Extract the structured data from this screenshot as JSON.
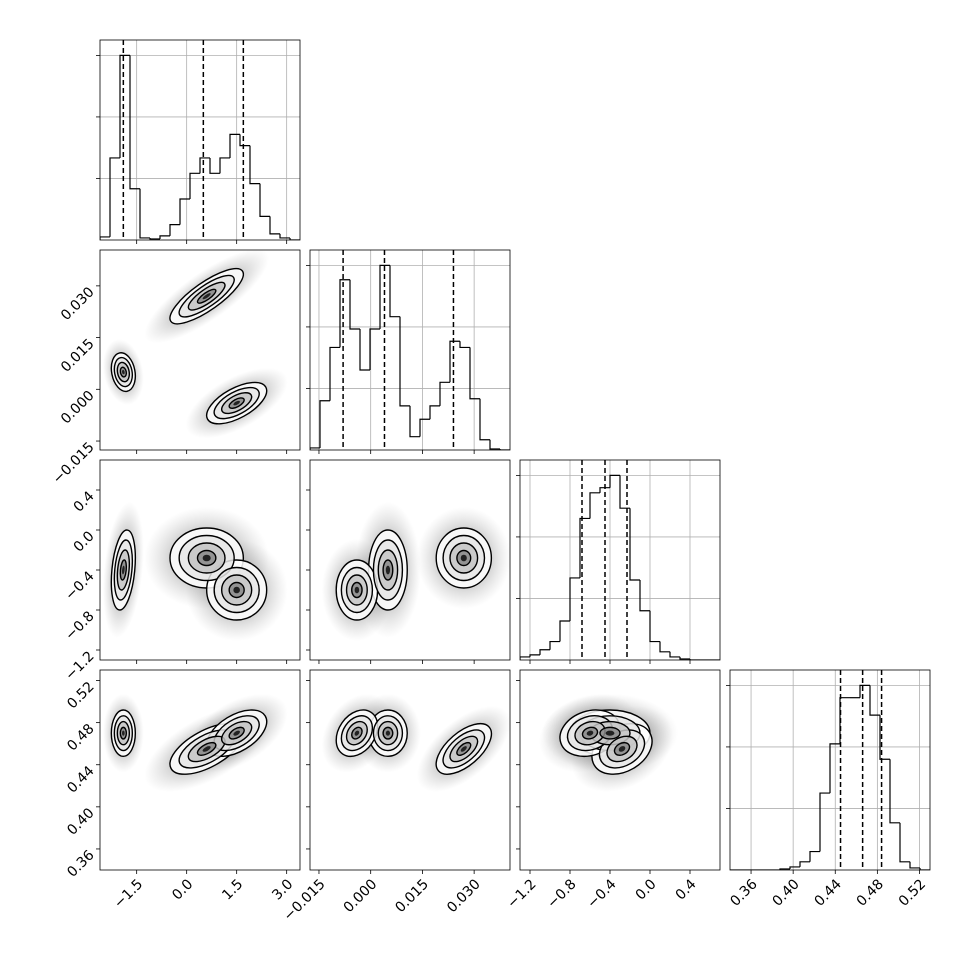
{
  "chart_data": {
    "type": "corner",
    "parameters": [
      {
        "lim": [
          -2.6,
          3.4
        ],
        "ticks": [
          {
            "value": -1.5,
            "label": "−1.5"
          },
          {
            "value": 0,
            "label": "0.0"
          },
          1.5,
          {
            "value": 3,
            "label": "3.0"
          }
        ],
        "bins": [
          -2.6,
          -2.3,
          -2.0,
          -1.7,
          -1.4,
          -1.1,
          -0.8,
          -0.5,
          -0.2,
          0.1,
          0.4,
          0.7,
          1.0,
          1.3,
          1.6,
          1.9,
          2.2,
          2.5,
          2.8,
          3.1,
          3.4
        ],
        "counts": [
          30,
          800,
          1800,
          500,
          20,
          10,
          40,
          150,
          400,
          650,
          800,
          650,
          800,
          1030,
          920,
          550,
          230,
          60,
          20,
          0
        ],
        "quantiles": [
          -1.9,
          0.5,
          1.7
        ]
      },
      {
        "lim": [
          -0.0176,
          0.0404
        ],
        "ticks": [
          {
            "value": -0.015,
            "label": "−0.015"
          },
          {
            "value": 0,
            "label": "0.000"
          },
          0.015,
          {
            "value": 0.03,
            "label": "0.030"
          }
        ],
        "bins": [
          -0.0176,
          -0.0147,
          -0.0118,
          -0.0089,
          -0.006,
          -0.0031,
          -0.0002,
          0.0027,
          0.0056,
          0.0085,
          0.0114,
          0.0143,
          0.0172,
          0.0201,
          0.023,
          0.0259,
          0.0288,
          0.0317,
          0.0346,
          0.0375,
          0.0404
        ],
        "counts": [
          20,
          480,
          1000,
          1660,
          1180,
          780,
          1180,
          1800,
          1300,
          430,
          130,
          300,
          430,
          660,
          1060,
          1000,
          500,
          100,
          10,
          0
        ],
        "quantiles": [
          -0.008,
          0.004,
          0.024
        ]
      },
      {
        "lim": [
          -1.3,
          0.7
        ],
        "ticks": [
          {
            "value": -1.2,
            "label": "−1.2"
          },
          {
            "value": -0.8,
            "label": "−0.8"
          },
          {
            "value": -0.4,
            "label": "−0.4"
          },
          {
            "value": 0,
            "label": "0.0"
          },
          0.4
        ],
        "bins": [
          -1.3,
          -1.2,
          -1.1,
          -1.0,
          -0.9,
          -0.8,
          -0.7,
          -0.6,
          -0.5,
          -0.4,
          -0.3,
          -0.2,
          -0.1,
          0.0,
          0.1,
          0.2,
          0.3,
          0.4,
          0.5,
          0.6,
          0.7
        ],
        "counts": [
          30,
          50,
          100,
          180,
          380,
          800,
          1380,
          1630,
          1680,
          1800,
          1480,
          780,
          480,
          180,
          80,
          30,
          10,
          0,
          0,
          0
        ],
        "quantiles": [
          -0.68,
          -0.45,
          -0.23
        ]
      },
      {
        "lim": [
          0.34,
          0.53
        ],
        "ticks": [
          0.36,
          {
            "value": 0.4,
            "label": "0.40"
          },
          0.44,
          0.48,
          0.52
        ],
        "bins": [
          0.34,
          0.3495,
          0.359,
          0.3685,
          0.378,
          0.3875,
          0.397,
          0.4065,
          0.416,
          0.4255,
          0.435,
          0.4445,
          0.454,
          0.4635,
          0.473,
          0.4825,
          0.492,
          0.5015,
          0.511,
          0.5205,
          0.53
        ],
        "counts": [
          0,
          0,
          0,
          0,
          0,
          10,
          30,
          80,
          180,
          750,
          1230,
          1680,
          1680,
          1800,
          1510,
          1080,
          460,
          80,
          20,
          0
        ],
        "quantiles": [
          0.445,
          0.466,
          0.484
        ]
      }
    ],
    "hist_ylim": [
      0,
      1950
    ],
    "hist_yticks": [
      600,
      1200,
      1800
    ],
    "components": [
      {
        "mean": [
          -1.9,
          0.005,
          -0.4,
          0.47
        ],
        "sd": [
          0.18,
          0.0028,
          0.2,
          0.011
        ],
        "corr": [
          -0.2,
          0.3,
          0,
          0,
          0,
          0
        ]
      },
      {
        "mean": [
          0.6,
          0.027,
          -0.28,
          0.455
        ],
        "sd": [
          0.55,
          0.004,
          0.15,
          0.012
        ],
        "corr": [
          0.8,
          0,
          0.6,
          0,
          0.6,
          0.3
        ]
      },
      {
        "mean": [
          1.5,
          -0.004,
          -0.6,
          0.47
        ],
        "sd": [
          0.45,
          0.003,
          0.15,
          0.011
        ],
        "corr": [
          0.6,
          0,
          0.5,
          0,
          0.3,
          0.2
        ]
      }
    ],
    "contour_levels": [
      2,
      1.5,
      1,
      0.5
    ],
    "grid": true
  }
}
